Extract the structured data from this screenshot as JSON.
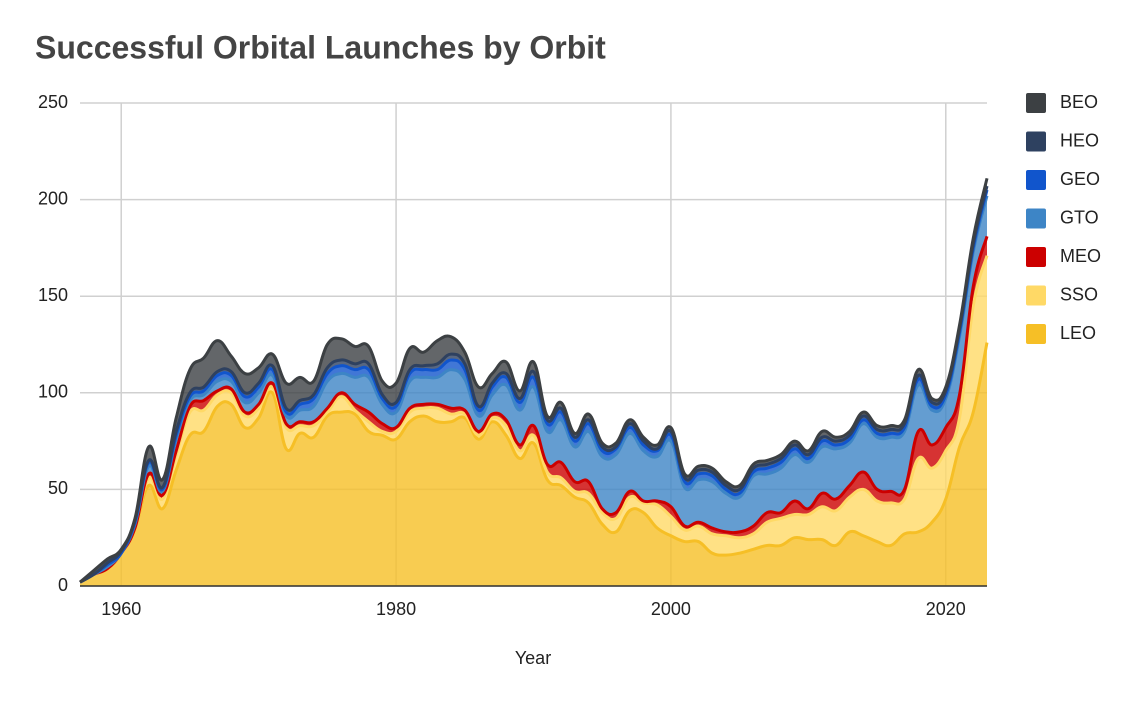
{
  "chart_data": {
    "type": "stacked_area",
    "title": "Successful Orbital Launches by Orbit",
    "x_label": "Year",
    "x": [
      1957,
      1958,
      1959,
      1960,
      1961,
      1962,
      1963,
      1964,
      1965,
      1966,
      1967,
      1968,
      1969,
      1970,
      1971,
      1972,
      1973,
      1974,
      1975,
      1976,
      1977,
      1978,
      1979,
      1980,
      1981,
      1982,
      1983,
      1984,
      1985,
      1986,
      1987,
      1988,
      1989,
      1990,
      1991,
      1992,
      1993,
      1994,
      1995,
      1996,
      1997,
      1998,
      1999,
      2000,
      2001,
      2002,
      2003,
      2004,
      2005,
      2006,
      2007,
      2008,
      2009,
      2010,
      2011,
      2012,
      2013,
      2014,
      2015,
      2016,
      2017,
      2018,
      2019,
      2020,
      2021,
      2022,
      2023
    ],
    "xlim": [
      1957,
      2023
    ],
    "xticks": [
      1960,
      1980,
      2000,
      2020
    ],
    "ylim": [
      0,
      250
    ],
    "yticks": [
      0,
      50,
      100,
      150,
      200,
      250
    ],
    "grid": true,
    "legend": "right",
    "series": [
      {
        "name": "LEO",
        "color": "#f6bf26",
        "values": [
          2,
          6,
          9,
          17,
          30,
          52,
          40,
          60,
          78,
          80,
          93,
          94,
          82,
          87,
          100,
          71,
          79,
          77,
          88,
          90,
          89,
          80,
          78,
          76,
          85,
          88,
          85,
          85,
          87,
          76,
          85,
          78,
          66,
          74,
          55,
          52,
          46,
          43,
          32,
          28,
          39,
          38,
          30,
          26,
          23,
          23,
          17,
          16,
          17,
          19,
          21,
          21,
          25,
          24,
          24,
          21,
          28,
          26,
          23,
          21,
          27,
          28,
          33,
          45,
          72,
          90,
          126
        ]
      },
      {
        "name": "SSO",
        "color": "#ffd966",
        "values": [
          0,
          0,
          0,
          0,
          0,
          4,
          5,
          8,
          12,
          11,
          6,
          6,
          6,
          5,
          3,
          11,
          4,
          6,
          2,
          8,
          2,
          5,
          2,
          4,
          5,
          4,
          7,
          4,
          2,
          2,
          2,
          5,
          4,
          4,
          4,
          4,
          3,
          5,
          6,
          7,
          7,
          5,
          12,
          10,
          6,
          8,
          10,
          10,
          8,
          8,
          12,
          14,
          12,
          13,
          17,
          18,
          18,
          24,
          21,
          22,
          18,
          38,
          28,
          25,
          15,
          55,
          45
        ]
      },
      {
        "name": "MEO",
        "color": "#cc0000",
        "values": [
          0,
          0,
          0,
          0,
          0,
          2,
          2,
          2,
          3,
          5,
          2,
          2,
          2,
          2,
          2,
          2,
          2,
          2,
          2,
          2,
          3,
          5,
          4,
          2,
          2,
          2,
          2,
          3,
          2,
          2,
          2,
          3,
          3,
          5,
          4,
          8,
          5,
          6,
          2,
          3,
          3,
          1,
          2,
          5,
          2,
          2,
          3,
          2,
          3,
          4,
          5,
          3,
          7,
          3,
          7,
          6,
          6,
          9,
          6,
          6,
          5,
          14,
          12,
          12,
          12,
          10,
          10
        ]
      },
      {
        "name": "GTO",
        "color": "#3d85c6",
        "values": [
          0,
          0,
          1,
          0,
          2,
          4,
          2,
          6,
          3,
          3,
          5,
          4,
          5,
          6,
          4,
          4,
          6,
          8,
          14,
          10,
          14,
          18,
          10,
          8,
          14,
          14,
          14,
          20,
          16,
          8,
          10,
          18,
          18,
          20,
          17,
          22,
          18,
          26,
          27,
          30,
          30,
          26,
          23,
          34,
          20,
          22,
          24,
          20,
          18,
          26,
          20,
          23,
          24,
          24,
          24,
          26,
          22,
          25,
          27,
          28,
          30,
          24,
          18,
          15,
          30,
          18,
          21
        ]
      },
      {
        "name": "GEO",
        "color": "#1155cc",
        "values": [
          0,
          0,
          1,
          0,
          1,
          2,
          1,
          2,
          2,
          2,
          3,
          3,
          3,
          3,
          3,
          2,
          3,
          4,
          4,
          4,
          4,
          4,
          3,
          3,
          4,
          4,
          4,
          5,
          5,
          3,
          4,
          4,
          4,
          5,
          4,
          4,
          3,
          4,
          3,
          3,
          3,
          3,
          3,
          3,
          3,
          3,
          3,
          2,
          2,
          2,
          3,
          3,
          3,
          2,
          3,
          2,
          2,
          2,
          2,
          2,
          2,
          3,
          2,
          2,
          2,
          2,
          3
        ]
      },
      {
        "name": "HEO",
        "color": "#2e4160",
        "values": [
          0,
          0,
          1,
          1,
          1,
          1,
          1,
          2,
          2,
          2,
          2,
          2,
          2,
          2,
          2,
          2,
          2,
          2,
          3,
          3,
          3,
          3,
          2,
          2,
          2,
          2,
          3,
          3,
          3,
          2,
          2,
          2,
          2,
          3,
          2,
          2,
          2,
          2,
          2,
          1,
          2,
          2,
          1,
          2,
          2,
          2,
          2,
          2,
          2,
          2,
          2,
          2,
          2,
          2,
          2,
          2,
          2,
          2,
          2,
          2,
          2,
          2,
          2,
          2,
          2,
          2,
          2
        ]
      },
      {
        "name": "BEO",
        "color": "#3c4043",
        "values": [
          0,
          2,
          2,
          1,
          1,
          7,
          4,
          7,
          12,
          15,
          16,
          8,
          10,
          8,
          6,
          13,
          12,
          7,
          12,
          11,
          9,
          9,
          7,
          10,
          11,
          7,
          12,
          9,
          6,
          10,
          5,
          6,
          4,
          5,
          2,
          3,
          2,
          3,
          2,
          2,
          2,
          2,
          2,
          2,
          2,
          2,
          2,
          2,
          2,
          2,
          2,
          2,
          2,
          2,
          3,
          2,
          2,
          2,
          2,
          2,
          2,
          3,
          2,
          2,
          2,
          3,
          4
        ]
      }
    ]
  }
}
